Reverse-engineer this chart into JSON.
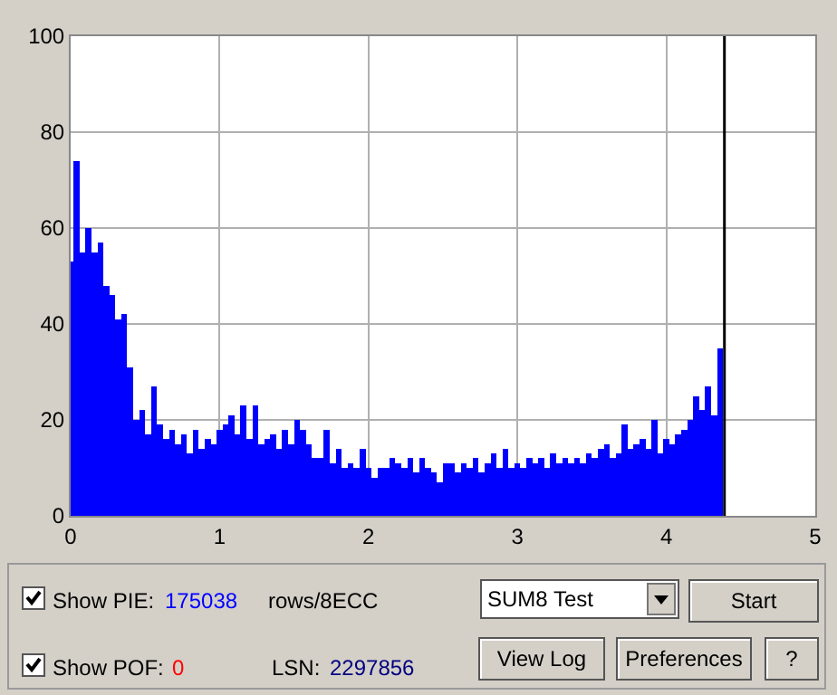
{
  "chart_data": {
    "type": "bar",
    "color": "#0000ff",
    "x": [
      0,
      0.04,
      0.08,
      0.12,
      0.16,
      0.2,
      0.24,
      0.28,
      0.32,
      0.36,
      0.4,
      0.44,
      0.48,
      0.52,
      0.56,
      0.6,
      0.64,
      0.68,
      0.72,
      0.76,
      0.8,
      0.84,
      0.88,
      0.92,
      0.96,
      1,
      1.04,
      1.08,
      1.12,
      1.16,
      1.2,
      1.24,
      1.28,
      1.32,
      1.36,
      1.4,
      1.44,
      1.48,
      1.52,
      1.56,
      1.6,
      1.64,
      1.68,
      1.72,
      1.76,
      1.8,
      1.84,
      1.88,
      1.92,
      1.96,
      2,
      2.04,
      2.08,
      2.12,
      2.16,
      2.2,
      2.24,
      2.28,
      2.32,
      2.36,
      2.4,
      2.44,
      2.48,
      2.52,
      2.56,
      2.6,
      2.64,
      2.68,
      2.72,
      2.76,
      2.8,
      2.84,
      2.88,
      2.92,
      2.96,
      3,
      3.04,
      3.08,
      3.12,
      3.16,
      3.2,
      3.24,
      3.28,
      3.32,
      3.36,
      3.4,
      3.44,
      3.48,
      3.52,
      3.56,
      3.6,
      3.64,
      3.68,
      3.72,
      3.76,
      3.8,
      3.84,
      3.88,
      3.92,
      3.96,
      4,
      4.04,
      4.08,
      4.12,
      4.16,
      4.2,
      4.24,
      4.28,
      4.32,
      4.36
    ],
    "values": [
      53,
      74,
      55,
      60,
      55,
      57,
      48,
      46,
      41,
      42,
      31,
      20,
      22,
      17,
      27,
      19,
      16,
      18,
      15,
      17,
      13,
      18,
      14,
      16,
      15,
      18,
      19,
      21,
      17,
      23,
      16,
      23,
      15,
      16,
      17,
      14,
      18,
      15,
      20,
      18,
      15,
      12,
      12,
      18,
      11,
      14,
      10,
      11,
      10,
      14,
      10,
      8,
      10,
      10,
      12,
      11,
      10,
      12,
      9,
      12,
      10,
      9,
      7,
      11,
      11,
      9,
      11,
      10,
      12,
      9,
      11,
      13,
      10,
      14,
      10,
      11,
      10,
      12,
      11,
      12,
      10,
      13,
      11,
      12,
      11,
      12,
      11,
      13,
      12,
      14,
      15,
      12,
      13,
      19,
      14,
      15,
      16,
      14,
      20,
      13,
      16,
      15,
      17,
      18,
      20,
      25,
      22,
      27,
      21,
      35
    ],
    "xlim": [
      0,
      5
    ],
    "xticks": [
      0,
      1,
      2,
      3,
      4,
      5
    ],
    "ylim": [
      0,
      100
    ],
    "yticks": [
      0,
      20,
      40,
      60,
      80,
      100
    ],
    "grid": true,
    "ref_lines": [
      {
        "axis": "x",
        "value": 4.39,
        "color": "#000000"
      }
    ],
    "annotations": [
      "Show PIE:",
      "175038",
      "rows/8ECC",
      "SUM8 Test",
      "Start",
      "Show POF:",
      "0",
      "LSN:",
      "2297856",
      "View Log",
      "Preferences",
      "?"
    ]
  }
}
